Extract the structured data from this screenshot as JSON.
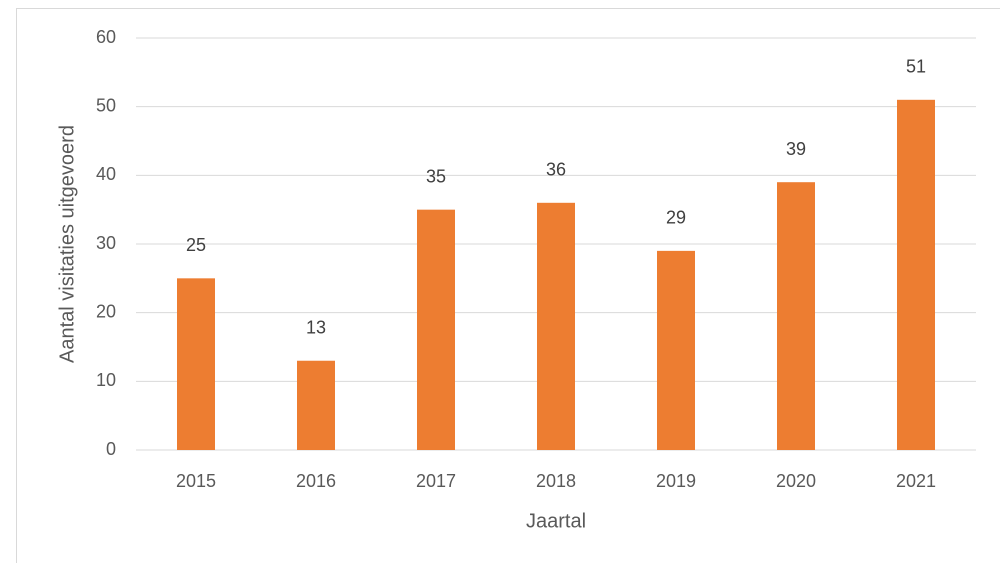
{
  "chart_data": {
    "type": "bar",
    "categories": [
      "2015",
      "2016",
      "2017",
      "2018",
      "2019",
      "2020",
      "2021"
    ],
    "values": [
      25,
      13,
      35,
      36,
      29,
      39,
      51
    ],
    "color": "#ed7d31",
    "xlabel": "Jaartal",
    "ylabel": "Aantal visitaties uitgevoerd",
    "ylim": [
      0,
      60
    ],
    "yticks": [
      0,
      10,
      20,
      30,
      40,
      50,
      60
    ],
    "grid": true,
    "data_labels": true
  }
}
